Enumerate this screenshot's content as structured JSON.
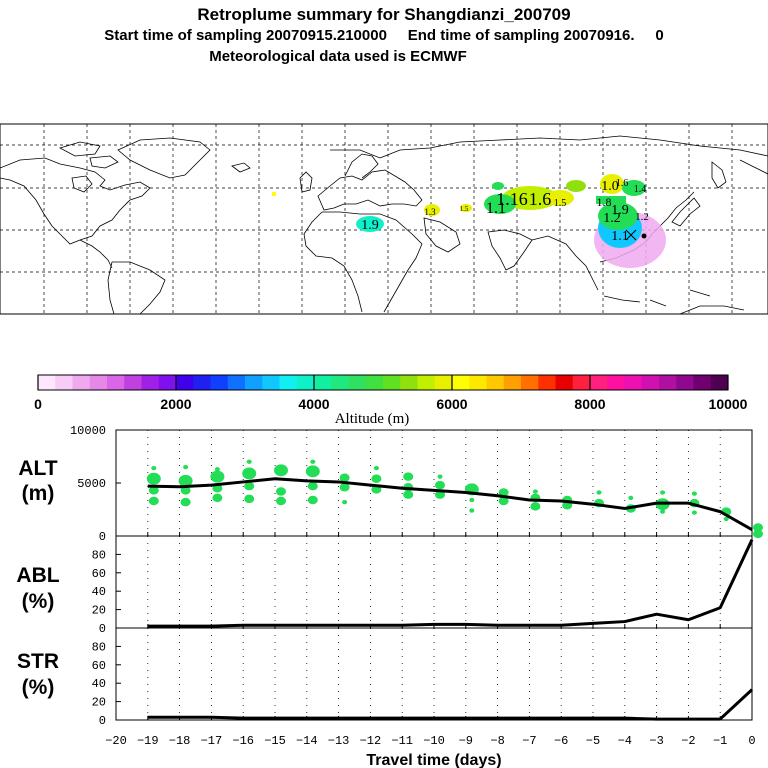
{
  "header": {
    "title": "Retroplume summary for Shangdianzi_200709",
    "sampling": "Start time of sampling 20070915.210000     End time of sampling 20070916.     0",
    "met": "Meteorological data used is ECMWF"
  },
  "colors": {
    "accent_green": "#22dd55",
    "line": "#000000",
    "grid": "#000000"
  },
  "map": {
    "plume_labels": [
      "1.9",
      "1.16",
      "1.6",
      "1.5",
      "1.1",
      "1.3",
      "1.5",
      "1.0",
      "1.9",
      "1.1",
      "1.8",
      "1.4",
      "1.2",
      "1.6",
      "1.2"
    ]
  },
  "colorbar": {
    "ticks": [
      "0",
      "2000",
      "4000",
      "6000",
      "8000",
      "10000"
    ],
    "label": "Altitude (m)",
    "colors": [
      "#ffe6ff",
      "#f7ccf7",
      "#efaaef",
      "#e688e8",
      "#d966e6",
      "#c040e0",
      "#a020e8",
      "#8010f0",
      "#4000ee",
      "#2020f0",
      "#1040ff",
      "#1070ff",
      "#10a0ff",
      "#10c8ff",
      "#10f0f0",
      "#10f0c8",
      "#10f0a0",
      "#20e880",
      "#30e060",
      "#40e040",
      "#60e020",
      "#90e010",
      "#c0f000",
      "#e8f000",
      "#ffff00",
      "#ffe800",
      "#ffc800",
      "#ffa000",
      "#ff7000",
      "#ff3000",
      "#e80000",
      "#ff2040",
      "#ff2080",
      "#ff10a0",
      "#ee10b0",
      "#d010b0",
      "#b010a0",
      "#900890",
      "#700070",
      "#500050"
    ]
  },
  "chart_data": [
    {
      "type": "line",
      "name": "ALT",
      "panel_label": [
        "ALT",
        "(m)"
      ],
      "xlabel": "Travel time (days)",
      "ylabel": "ALT (m)",
      "xlim": [
        -20,
        0
      ],
      "ylim": [
        0,
        10000
      ],
      "y_ticks": [
        "0",
        "5000",
        "10000"
      ],
      "x": [
        -19,
        -18,
        -17,
        -16,
        -15,
        -14,
        -13,
        -12,
        -11,
        -10,
        -9,
        -8,
        -7,
        -6,
        -5,
        -4,
        -3,
        -2,
        -1,
        0
      ],
      "series": [
        {
          "name": "median altitude",
          "values": [
            4700,
            4650,
            4800,
            5100,
            5400,
            5200,
            5100,
            4800,
            4500,
            4300,
            4100,
            3800,
            3400,
            3300,
            3000,
            2600,
            3100,
            3100,
            2300,
            600
          ]
        }
      ],
      "scatter": {
        "name": "plume clusters",
        "points": [
          [
            -19,
            5400,
            3
          ],
          [
            -19,
            4300,
            2
          ],
          [
            -19,
            3300,
            2
          ],
          [
            -19,
            6400,
            1
          ],
          [
            -18,
            5200,
            3
          ],
          [
            -18,
            3200,
            2
          ],
          [
            -18,
            6500,
            1
          ],
          [
            -18,
            4300,
            2
          ],
          [
            -17,
            5600,
            3
          ],
          [
            -17,
            4500,
            2
          ],
          [
            -17,
            3600,
            2
          ],
          [
            -17,
            6300,
            1
          ],
          [
            -16,
            5900,
            3
          ],
          [
            -16,
            3500,
            2
          ],
          [
            -16,
            4700,
            2
          ],
          [
            -16,
            7000,
            1
          ],
          [
            -15,
            6200,
            3
          ],
          [
            -15,
            4200,
            2
          ],
          [
            -15,
            3300,
            2
          ],
          [
            -14,
            6100,
            3
          ],
          [
            -14,
            3400,
            2
          ],
          [
            -14,
            4700,
            2
          ],
          [
            -14,
            7000,
            1
          ],
          [
            -13,
            5500,
            2
          ],
          [
            -13,
            4600,
            2
          ],
          [
            -13,
            3200,
            1
          ],
          [
            -12,
            5400,
            2
          ],
          [
            -12,
            4400,
            2
          ],
          [
            -12,
            6400,
            1
          ],
          [
            -11,
            5600,
            2
          ],
          [
            -11,
            3900,
            2
          ],
          [
            -11,
            4600,
            2
          ],
          [
            -10,
            4800,
            2
          ],
          [
            -10,
            3900,
            2
          ],
          [
            -10,
            5600,
            1
          ],
          [
            -9,
            4400,
            3
          ],
          [
            -9,
            3400,
            1
          ],
          [
            -9,
            2400,
            1
          ],
          [
            -8,
            4100,
            2
          ],
          [
            -8,
            3300,
            2
          ],
          [
            -7,
            3600,
            2
          ],
          [
            -7,
            2800,
            2
          ],
          [
            -7,
            4200,
            1
          ],
          [
            -6,
            3400,
            2
          ],
          [
            -6,
            2900,
            2
          ],
          [
            -5,
            3100,
            2
          ],
          [
            -5,
            4100,
            1
          ],
          [
            -4,
            2600,
            2
          ],
          [
            -4,
            3600,
            1
          ],
          [
            -3,
            3000,
            3
          ],
          [
            -3,
            4100,
            1
          ],
          [
            -3,
            2300,
            1
          ],
          [
            -2,
            3100,
            2
          ],
          [
            -2,
            2200,
            1
          ],
          [
            -2,
            4000,
            1
          ],
          [
            -1,
            2300,
            2
          ],
          [
            -1,
            1600,
            1
          ],
          [
            0,
            800,
            2
          ],
          [
            0,
            200,
            2
          ]
        ]
      }
    },
    {
      "type": "line",
      "name": "ABL",
      "panel_label": [
        "ABL",
        "(%)"
      ],
      "xlim": [
        -20,
        0
      ],
      "ylim": [
        0,
        100
      ],
      "y_ticks": [
        "0",
        "20",
        "40",
        "60",
        "80"
      ],
      "x": [
        -19,
        -18,
        -17,
        -16,
        -15,
        -14,
        -13,
        -12,
        -11,
        -10,
        -9,
        -8,
        -7,
        -6,
        -5,
        -4,
        -3,
        -2,
        -1,
        0
      ],
      "series": [
        {
          "name": "fraction in ABL",
          "values": [
            2,
            2,
            2,
            3,
            3,
            3,
            3,
            3,
            3,
            4,
            4,
            3,
            3,
            3,
            5,
            7,
            15,
            9,
            22,
            96
          ]
        }
      ]
    },
    {
      "type": "line",
      "name": "STR",
      "panel_label": [
        "STR",
        "(%)"
      ],
      "xlim": [
        -20,
        0
      ],
      "ylim": [
        0,
        100
      ],
      "y_ticks": [
        "0",
        "20",
        "40",
        "60",
        "80"
      ],
      "x_ticks": [
        "−20",
        "−19",
        "−18",
        "−17",
        "−16",
        "−15",
        "−14",
        "−13",
        "−12",
        "−11",
        "−10",
        "−9",
        "−8",
        "−7",
        "−6",
        "−5",
        "−4",
        "−3",
        "−2",
        "−1",
        "0"
      ],
      "xlabel": "Travel time (days)",
      "x": [
        -19,
        -18,
        -17,
        -16,
        -15,
        -14,
        -13,
        -12,
        -11,
        -10,
        -9,
        -8,
        -7,
        -6,
        -5,
        -4,
        -3,
        -2,
        -1,
        0
      ],
      "series": [
        {
          "name": "stratospheric fraction",
          "values": [
            3,
            3,
            3,
            2,
            2,
            2,
            2,
            2,
            2,
            2,
            2,
            2,
            2,
            2,
            2,
            2,
            1,
            1,
            1,
            33
          ]
        }
      ]
    }
  ]
}
